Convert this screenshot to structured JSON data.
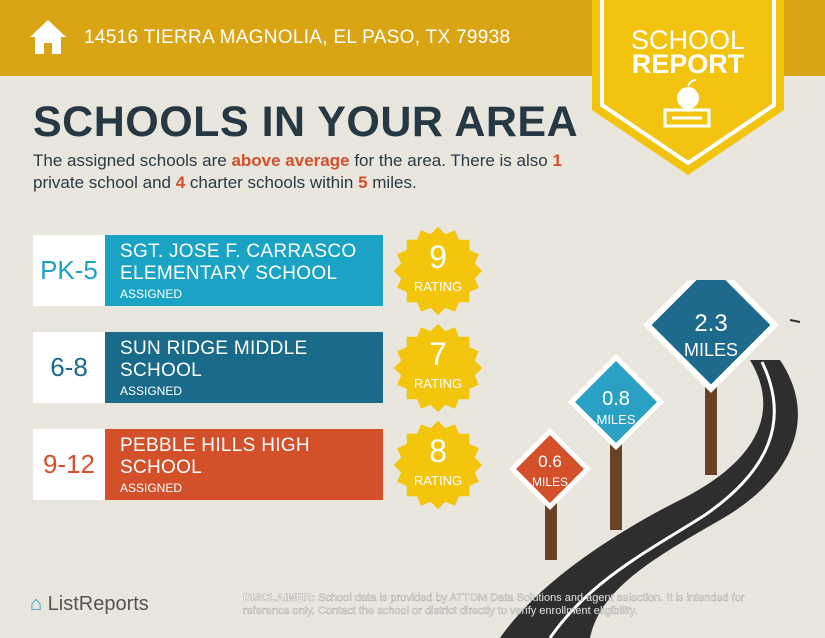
{
  "header": {
    "address": "14516 TIERRA MAGNOLIA, EL PASO, TX 79938",
    "icon": "home-icon"
  },
  "badge": {
    "line1": "SCHOOL",
    "line2": "REPORT",
    "icon": "apple-on-book-icon"
  },
  "title": "SCHOOLS IN YOUR AREA",
  "intro": {
    "p1": "The assigned schools are ",
    "hl1": "above average",
    "p2": " for the area. There is also ",
    "n_private": "1",
    "p3": " private school and ",
    "n_charter": "4",
    "p4": " charter schools within ",
    "n_miles": "5",
    "p5": " miles."
  },
  "schools": [
    {
      "grades": "PK-5",
      "name": "SGT. JOSE F. CARRASCO ELEMENTARY SCHOOL",
      "status": "ASSIGNED",
      "rating": "9",
      "rating_label": "RATING",
      "color": "#1ba3c6"
    },
    {
      "grades": "6-8",
      "name": "SUN RIDGE MIDDLE SCHOOL",
      "status": "ASSIGNED",
      "rating": "7",
      "rating_label": "RATING",
      "color": "#1a6a8a"
    },
    {
      "grades": "9-12",
      "name": "PEBBLE HILLS HIGH SCHOOL",
      "status": "ASSIGNED",
      "rating": "8",
      "rating_label": "RATING",
      "color": "#d4502a"
    }
  ],
  "signs": [
    {
      "value": "2.3",
      "unit": "MILES",
      "color": "#1d6a8c"
    },
    {
      "value": "0.8",
      "unit": "MILES",
      "color": "#2aa0c4"
    },
    {
      "value": "0.6",
      "unit": "MILES",
      "color": "#d4502a"
    }
  ],
  "footer": {
    "logo": "ListReports",
    "disclaimer_label": "DISCLAIMER:",
    "disclaimer": " School data is provided by ATTOM Data Solutions and agent selection. It is intended for reference only. Contact the school or district directly to verify enrollment eligibility."
  },
  "colors": {
    "topbar": "#d9a514",
    "badge": "#f2c40f",
    "title": "#263844",
    "seal": "#f3c60d",
    "road": "#2e2e2e"
  }
}
